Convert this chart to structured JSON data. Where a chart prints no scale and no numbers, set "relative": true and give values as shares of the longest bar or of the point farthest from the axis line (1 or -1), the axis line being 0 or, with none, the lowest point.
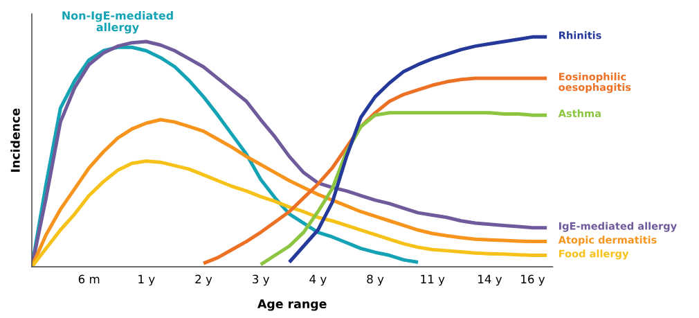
{
  "chart_data": {
    "type": "line",
    "relative": true,
    "xlabel": "Age range",
    "ylabel": "Incidence",
    "categories": [
      null,
      null,
      null,
      null,
      "6 m",
      null,
      null,
      null,
      "1 y",
      null,
      null,
      null,
      "2 y",
      null,
      null,
      null,
      "3 y",
      null,
      null,
      null,
      "4 y",
      null,
      null,
      null,
      "8 y",
      null,
      null,
      null,
      "11 y",
      null,
      null,
      null,
      "14 y",
      null,
      null,
      "16 y",
      null
    ],
    "grid": false,
    "legend": false,
    "marker": "none",
    "line_style": "solid",
    "series": [
      {
        "name": "Non-IgE-mediated\nallergy",
        "color": "#14a3b5",
        "values": [
          0,
          0.36,
          0.69,
          0.81,
          0.9,
          0.94,
          0.955,
          0.955,
          0.94,
          0.91,
          0.87,
          0.81,
          0.74,
          0.66,
          0.575,
          0.49,
          0.38,
          0.3,
          0.23,
          0.19,
          0.15,
          0.13,
          0.105,
          0.08,
          0.063,
          0.05,
          0.03,
          0.02,
          null,
          null,
          null,
          null,
          null,
          null,
          null,
          null,
          null
        ]
      },
      {
        "name": "IgE-mediated allergy",
        "color": "#6f5b9b",
        "values": [
          0,
          0.3,
          0.63,
          0.78,
          0.88,
          0.93,
          0.96,
          0.975,
          0.98,
          0.965,
          0.94,
          0.905,
          0.87,
          0.82,
          0.77,
          0.72,
          0.64,
          0.565,
          0.48,
          0.41,
          0.365,
          0.345,
          0.33,
          0.31,
          0.29,
          0.275,
          0.255,
          0.235,
          0.225,
          0.215,
          0.2,
          0.19,
          0.185,
          0.18,
          0.175,
          0.17,
          0.17
        ]
      },
      {
        "name": "Atopic dermatitis",
        "color": "#f7941d",
        "values": [
          0,
          0.14,
          0.25,
          0.34,
          0.43,
          0.5,
          0.56,
          0.6,
          0.625,
          0.64,
          0.63,
          0.61,
          0.59,
          0.555,
          0.52,
          0.48,
          0.445,
          0.41,
          0.375,
          0.345,
          0.315,
          0.29,
          0.265,
          0.24,
          0.22,
          0.2,
          0.18,
          0.16,
          0.145,
          0.135,
          0.127,
          0.12,
          0.117,
          0.115,
          0.112,
          0.11,
          0.11
        ]
      },
      {
        "name": "Food allergy",
        "color": "#f6c21a",
        "values": [
          0,
          0.08,
          0.16,
          0.23,
          0.31,
          0.37,
          0.42,
          0.45,
          0.46,
          0.455,
          0.44,
          0.425,
          0.4,
          0.375,
          0.35,
          0.33,
          0.305,
          0.285,
          0.26,
          0.24,
          0.215,
          0.2,
          0.18,
          0.16,
          0.14,
          0.12,
          0.1,
          0.085,
          0.075,
          0.07,
          0.065,
          0.06,
          0.057,
          0.055,
          0.052,
          0.05,
          0.05
        ]
      },
      {
        "name": "Eosinophilic\noesophagitis",
        "color": "#ec7125",
        "values": [
          null,
          null,
          null,
          null,
          null,
          null,
          null,
          null,
          null,
          null,
          null,
          null,
          0.015,
          0.04,
          0.075,
          0.11,
          0.15,
          0.195,
          0.24,
          0.3,
          0.36,
          0.43,
          0.52,
          0.61,
          0.67,
          0.72,
          0.75,
          0.77,
          0.79,
          0.805,
          0.815,
          0.82,
          0.82,
          0.82,
          0.82,
          0.82,
          0.82
        ]
      },
      {
        "name": "Asthma",
        "color": "#8cc540",
        "values": [
          null,
          null,
          null,
          null,
          null,
          null,
          null,
          null,
          null,
          null,
          null,
          null,
          null,
          null,
          null,
          null,
          0.01,
          0.05,
          0.09,
          0.15,
          0.24,
          0.34,
          0.5,
          0.61,
          0.66,
          0.67,
          0.67,
          0.67,
          0.67,
          0.67,
          0.67,
          0.67,
          0.67,
          0.665,
          0.665,
          0.66,
          0.66
        ]
      },
      {
        "name": "Rhinitis",
        "color": "#25399a",
        "values": [
          null,
          null,
          null,
          null,
          null,
          null,
          null,
          null,
          null,
          null,
          null,
          null,
          null,
          null,
          null,
          null,
          null,
          null,
          0.02,
          0.09,
          0.16,
          0.28,
          0.48,
          0.65,
          0.74,
          0.8,
          0.85,
          0.88,
          0.905,
          0.925,
          0.945,
          0.96,
          0.97,
          0.98,
          0.99,
          1.0,
          1.0
        ]
      }
    ]
  }
}
